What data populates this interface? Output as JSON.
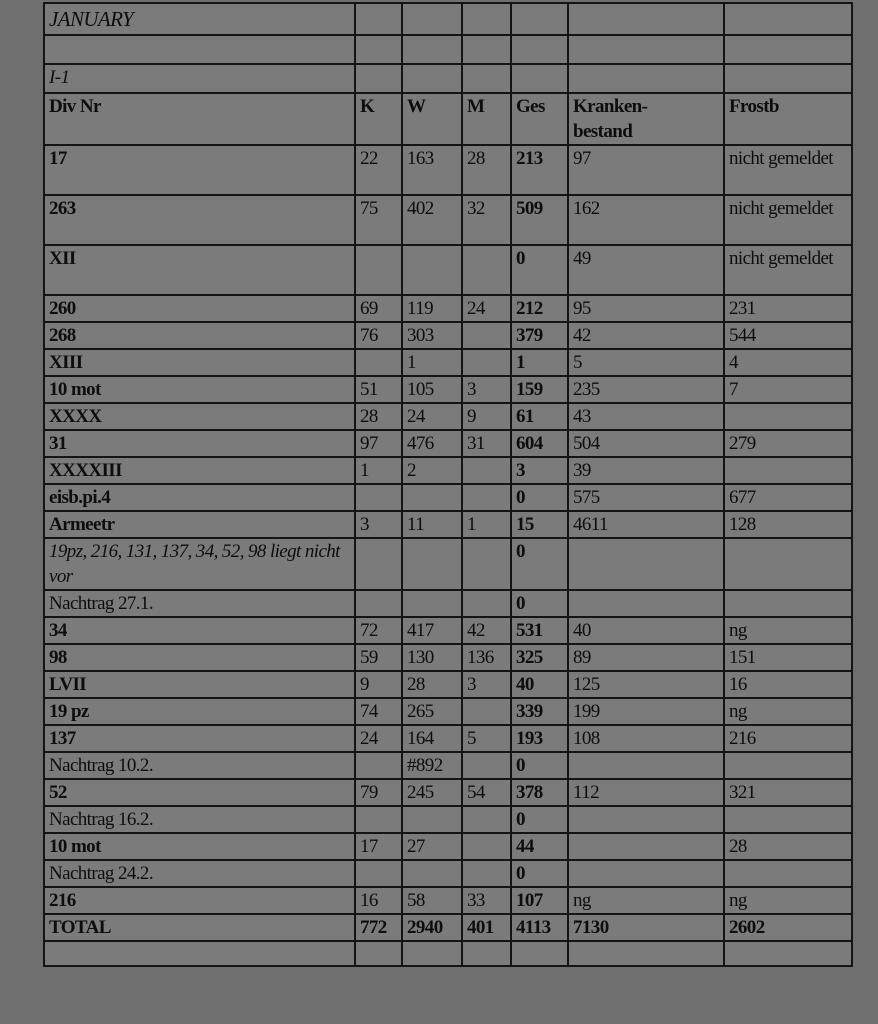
{
  "title": "JANUARY",
  "section": "I-1",
  "columns": [
    "Div Nr",
    "K",
    "W",
    "M",
    "Ges",
    "Kranken-\nbestand",
    "Frostb"
  ],
  "columns_display": {
    "div": "Div Nr",
    "k": "K",
    "w": "W",
    "m": "M",
    "ges": "Ges",
    "kb1": "Kranken-",
    "kb2": "bestand",
    "fb": "Frostb"
  },
  "rows": [
    {
      "div": "17",
      "style": "b",
      "k": "22",
      "w": "163",
      "m": "28",
      "ges": "213",
      "kb": "97",
      "fb": "nicht gemeldet"
    },
    {
      "div": "263",
      "style": "b",
      "k": "75",
      "w": "402",
      "m": "32",
      "ges": "509",
      "kb": "162",
      "fb": "nicht gemeldet"
    },
    {
      "div": "XII",
      "style": "b",
      "k": "",
      "w": "",
      "m": "",
      "ges": "0",
      "kb": "49",
      "fb": "nicht gemeldet"
    },
    {
      "div": "260",
      "style": "b",
      "k": "69",
      "w": "119",
      "m": "24",
      "ges": "212",
      "kb": "95",
      "fb": "231"
    },
    {
      "div": "268",
      "style": "b",
      "k": "76",
      "w": "303",
      "m": "",
      "ges": "379",
      "kb": "42",
      "fb": "544"
    },
    {
      "div": "XIII",
      "style": "b",
      "k": "",
      "w": "1",
      "m": "",
      "ges": "1",
      "kb": "5",
      "fb": "4"
    },
    {
      "div": "10 mot",
      "style": "b",
      "k": "51",
      "w": "105",
      "m": "3",
      "ges": "159",
      "kb": "235",
      "fb": "7"
    },
    {
      "div": "XXXX",
      "style": "b",
      "k": "28",
      "w": "24",
      "m": "9",
      "ges": "61",
      "kb": "43",
      "fb": ""
    },
    {
      "div": "31",
      "style": "b",
      "k": "97",
      "w": "476",
      "m": "31",
      "ges": "604",
      "kb": "504",
      "fb": "279"
    },
    {
      "div": "XXXXIII",
      "style": "b",
      "k": "1",
      "w": "2",
      "m": "",
      "ges": "3",
      "kb": "39",
      "fb": ""
    },
    {
      "div": "eisb.pi.4",
      "style": "b",
      "k": "",
      "w": "",
      "m": "",
      "ges": "0",
      "kb": "575",
      "fb": "677"
    },
    {
      "div": "Armeetr",
      "style": "b",
      "k": "3",
      "w": "11",
      "m": "1",
      "ges": "15",
      "kb": "4611",
      "fb": "128"
    },
    {
      "div": "19pz, 216, 131, 137, 34, 52, 98 liegt nicht vor",
      "style": "i",
      "k": "",
      "w": "",
      "m": "",
      "ges": "0",
      "kb": "",
      "fb": ""
    },
    {
      "div": "Nachtrag 27.1.",
      "style": "",
      "k": "",
      "w": "",
      "m": "",
      "ges": "0",
      "kb": "",
      "fb": ""
    },
    {
      "div": "34",
      "style": "b",
      "k": "72",
      "w": "417",
      "m": "42",
      "ges": "531",
      "kb": "40",
      "fb": "ng"
    },
    {
      "div": "98",
      "style": "b",
      "k": "59",
      "w": "130",
      "m": "136",
      "ges": "325",
      "kb": "89",
      "fb": "151"
    },
    {
      "div": "LVII",
      "style": "b",
      "k": "9",
      "w": "28",
      "m": "3",
      "ges": "40",
      "kb": "125",
      "fb": "16"
    },
    {
      "div": "19 pz",
      "style": "b",
      "k": "74",
      "w": "265",
      "m": "",
      "ges": "339",
      "kb": "199",
      "fb": "ng"
    },
    {
      "div": "137",
      "style": "b",
      "k": "24",
      "w": "164",
      "m": "5",
      "ges": "193",
      "kb": "108",
      "fb": "216"
    },
    {
      "div": "Nachtrag 10.2.",
      "style": "",
      "k": "",
      "w": "#892",
      "m": "",
      "ges": "0",
      "kb": "",
      "fb": ""
    },
    {
      "div": "52",
      "style": "b",
      "k": "79",
      "w": "245",
      "m": "54",
      "ges": "378",
      "kb": "112",
      "fb": "321"
    },
    {
      "div": "Nachtrag 16.2.",
      "style": "",
      "k": "",
      "w": "",
      "m": "",
      "ges": "0",
      "kb": "",
      "fb": ""
    },
    {
      "div": "10 mot",
      "style": "b",
      "k": "17",
      "w": "27",
      "m": "",
      "ges": "44",
      "kb": "",
      "fb": "28"
    },
    {
      "div": "Nachtrag 24.2.",
      "style": "",
      "k": "",
      "w": "",
      "m": "",
      "ges": "0",
      "kb": "",
      "fb": ""
    },
    {
      "div": "216",
      "style": "b",
      "k": "16",
      "w": "58",
      "m": "33",
      "ges": "107",
      "kb": "ng",
      "fb": "ng"
    },
    {
      "div": "TOTAL",
      "style": "b",
      "total": true,
      "k": "772",
      "w": "2940",
      "m": "401",
      "ges": "4113",
      "kb": "7130",
      "fb": "2602"
    }
  ]
}
